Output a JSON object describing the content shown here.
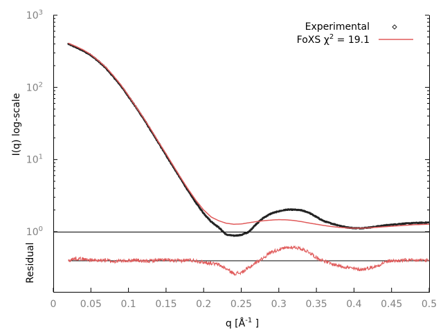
{
  "chart_data": [
    {
      "type": "scatter",
      "panel": "main",
      "title": "",
      "ylabel": "I(q) log-scale",
      "y_scale": "log",
      "xlim": [
        0,
        0.5
      ],
      "ylim": [
        1,
        1000
      ],
      "y_ticks": [
        1,
        10,
        100,
        1000
      ],
      "y_tick_labels": [
        {
          "base": "10",
          "exp": "0"
        },
        {
          "base": "10",
          "exp": "1"
        },
        {
          "base": "10",
          "exp": "2"
        },
        {
          "base": "10",
          "exp": "3"
        }
      ],
      "grid": false,
      "legend_position": "top-right",
      "legend": {
        "experimental_label": "Experimental",
        "fit_label_prefix": "FoXS χ",
        "fit_label_exp": "2",
        "fit_label_suffix": " = 19.1"
      },
      "series": [
        {
          "name": "Experimental",
          "kind": "points",
          "color": "#222222",
          "x": [
            0.02,
            0.03,
            0.04,
            0.05,
            0.06,
            0.07,
            0.08,
            0.09,
            0.1,
            0.11,
            0.12,
            0.13,
            0.14,
            0.15,
            0.16,
            0.17,
            0.18,
            0.19,
            0.2,
            0.21,
            0.22,
            0.23,
            0.24,
            0.25,
            0.26,
            0.27,
            0.28,
            0.29,
            0.3,
            0.31,
            0.32,
            0.33,
            0.34,
            0.35,
            0.36,
            0.37,
            0.38,
            0.39,
            0.4,
            0.41,
            0.42,
            0.43,
            0.44,
            0.45,
            0.46,
            0.47,
            0.48,
            0.49,
            0.5
          ],
          "y": [
            400,
            360,
            320,
            280,
            230,
            185,
            140,
            105,
            75,
            53,
            37,
            25,
            17,
            11.5,
            7.8,
            5.3,
            3.6,
            2.5,
            1.8,
            1.38,
            1.15,
            0.91,
            0.88,
            0.9,
            0.99,
            1.28,
            1.57,
            1.79,
            1.92,
            2.02,
            2.02,
            1.98,
            1.84,
            1.6,
            1.4,
            1.3,
            1.22,
            1.15,
            1.12,
            1.12,
            1.14,
            1.18,
            1.22,
            1.25,
            1.28,
            1.3,
            1.32,
            1.33,
            1.34
          ]
        },
        {
          "name": "FoXS χ2 = 19.1",
          "kind": "line",
          "color": "#e05a5a",
          "x": [
            0.02,
            0.03,
            0.04,
            0.05,
            0.06,
            0.07,
            0.08,
            0.09,
            0.1,
            0.11,
            0.12,
            0.13,
            0.14,
            0.15,
            0.16,
            0.17,
            0.18,
            0.19,
            0.2,
            0.21,
            0.22,
            0.23,
            0.24,
            0.25,
            0.26,
            0.27,
            0.28,
            0.29,
            0.3,
            0.31,
            0.32,
            0.33,
            0.34,
            0.35,
            0.36,
            0.37,
            0.38,
            0.39,
            0.4,
            0.41,
            0.42,
            0.43,
            0.44,
            0.45,
            0.46,
            0.47,
            0.48,
            0.49,
            0.5
          ],
          "y": [
            410,
            370,
            330,
            285,
            235,
            190,
            145,
            108,
            77,
            54,
            38,
            26,
            17.5,
            12,
            8.1,
            5.5,
            3.8,
            2.7,
            2.0,
            1.6,
            1.42,
            1.31,
            1.27,
            1.28,
            1.33,
            1.38,
            1.42,
            1.45,
            1.47,
            1.46,
            1.43,
            1.38,
            1.32,
            1.27,
            1.22,
            1.18,
            1.15,
            1.13,
            1.12,
            1.12,
            1.13,
            1.15,
            1.17,
            1.19,
            1.21,
            1.23,
            1.25,
            1.26,
            1.27
          ]
        }
      ]
    },
    {
      "type": "line",
      "panel": "residual",
      "ylabel": "Residual",
      "xlabel_prefix": "q [Å",
      "xlabel_exp": "-1",
      "xlabel_suffix": " ]",
      "xlim": [
        0,
        0.5
      ],
      "x_ticks": [
        0,
        0.05,
        0.1,
        0.15,
        0.2,
        0.25,
        0.3,
        0.35,
        0.4,
        0.45,
        0.5
      ],
      "x_tick_labels": [
        "0",
        "0.05",
        "0.1",
        "0.15",
        "0.2",
        "0.25",
        "0.3",
        "0.35",
        "0.4",
        "0.45",
        "0.5"
      ],
      "ylim": [
        -3,
        3
      ],
      "reference_line": 0,
      "series": [
        {
          "kind": "line",
          "color": "#e05a5a",
          "x": [
            0.02,
            0.03,
            0.04,
            0.05,
            0.06,
            0.07,
            0.08,
            0.09,
            0.1,
            0.11,
            0.12,
            0.13,
            0.14,
            0.15,
            0.16,
            0.17,
            0.18,
            0.19,
            0.2,
            0.21,
            0.22,
            0.23,
            0.24,
            0.25,
            0.26,
            0.27,
            0.28,
            0.29,
            0.3,
            0.31,
            0.32,
            0.33,
            0.34,
            0.35,
            0.36,
            0.37,
            0.38,
            0.39,
            0.4,
            0.41,
            0.42,
            0.43,
            0.44,
            0.45,
            0.46,
            0.47,
            0.48,
            0.49,
            0.5
          ],
          "y": [
            0.0,
            0.3,
            0.2,
            0.1,
            0.0,
            0.1,
            -0.1,
            0.0,
            0.0,
            0.1,
            -0.1,
            0.0,
            0.1,
            0.1,
            0.0,
            0.0,
            0.1,
            0.0,
            -0.2,
            -0.3,
            -0.5,
            -1.0,
            -1.6,
            -1.5,
            -0.9,
            -0.2,
            0.4,
            1.1,
            1.4,
            1.6,
            1.7,
            1.5,
            1.1,
            0.4,
            0.0,
            -0.4,
            -0.6,
            -0.8,
            -1.0,
            -1.1,
            -0.9,
            -0.7,
            -0.2,
            0.0,
            0.0,
            0.1,
            0.0,
            0.1,
            0.0
          ]
        }
      ]
    }
  ]
}
